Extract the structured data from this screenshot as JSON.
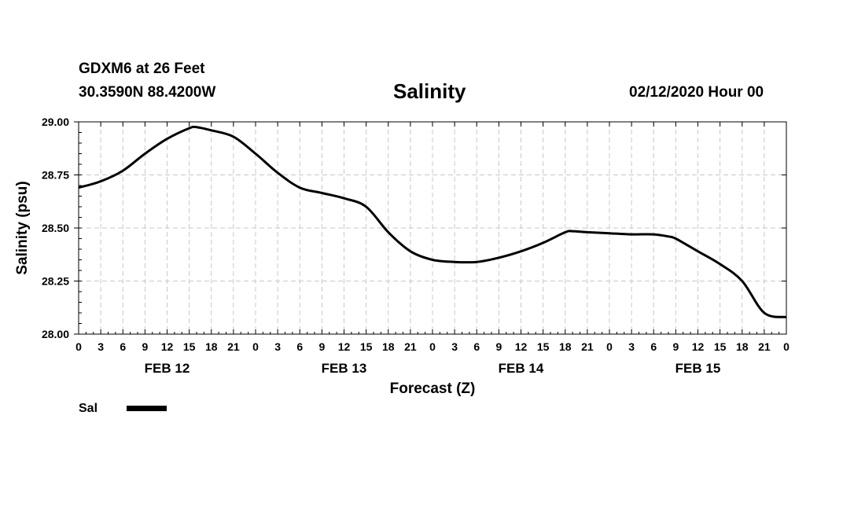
{
  "header": {
    "station": "GDXM6 at 26 Feet",
    "location": "30.3590N 88.4200W",
    "title": "Salinity",
    "datetime": "02/12/2020 Hour 00"
  },
  "chart_data": {
    "type": "line",
    "title": "Salinity",
    "xlabel": "Forecast (Z)",
    "ylabel": "Salinity (psu)",
    "ylim": [
      28.0,
      29.0
    ],
    "xlim_hours": [
      0,
      96
    ],
    "yticks": [
      "28.00",
      "28.25",
      "28.50",
      "28.75",
      "29.00"
    ],
    "y_tick_values": [
      28.0,
      28.25,
      28.5,
      28.75,
      29.0
    ],
    "x_tick_hours": [
      0,
      3,
      6,
      9,
      12,
      15,
      18,
      21,
      24,
      27,
      30,
      33,
      36,
      39,
      42,
      45,
      48,
      51,
      54,
      57,
      60,
      63,
      66,
      69,
      72,
      75,
      78,
      81,
      84,
      87,
      90,
      93,
      96
    ],
    "x_tick_labels": [
      "0",
      "3",
      "6",
      "9",
      "12",
      "15",
      "18",
      "21",
      "0",
      "3",
      "6",
      "9",
      "12",
      "15",
      "18",
      "21",
      "0",
      "3",
      "6",
      "9",
      "12",
      "15",
      "18",
      "21",
      "0",
      "3",
      "6",
      "9",
      "12",
      "15",
      "18",
      "21",
      "0"
    ],
    "date_labels": [
      {
        "label": "FEB 12",
        "hour": 12
      },
      {
        "label": "FEB 13",
        "hour": 36
      },
      {
        "label": "FEB 14",
        "hour": 60
      },
      {
        "label": "FEB 15",
        "hour": 84
      }
    ],
    "grid": true,
    "series": [
      {
        "name": "Sal",
        "hours": [
          0,
          3,
          6,
          9,
          12,
          15,
          16,
          18,
          21,
          24,
          27,
          30,
          33,
          36,
          39,
          42,
          45,
          48,
          51,
          54,
          57,
          60,
          63,
          66,
          67,
          69,
          72,
          75,
          78,
          80,
          81,
          84,
          87,
          90,
          93,
          96
        ],
        "values": [
          28.69,
          28.72,
          28.77,
          28.85,
          28.92,
          28.97,
          28.975,
          28.96,
          28.93,
          28.85,
          28.76,
          28.69,
          28.665,
          28.64,
          28.6,
          28.48,
          28.39,
          28.35,
          28.34,
          28.34,
          28.36,
          28.39,
          28.43,
          28.48,
          28.485,
          28.48,
          28.475,
          28.47,
          28.47,
          28.46,
          28.45,
          28.39,
          28.33,
          28.25,
          28.1,
          28.08
        ]
      }
    ]
  },
  "legend": {
    "label": "Sal"
  }
}
